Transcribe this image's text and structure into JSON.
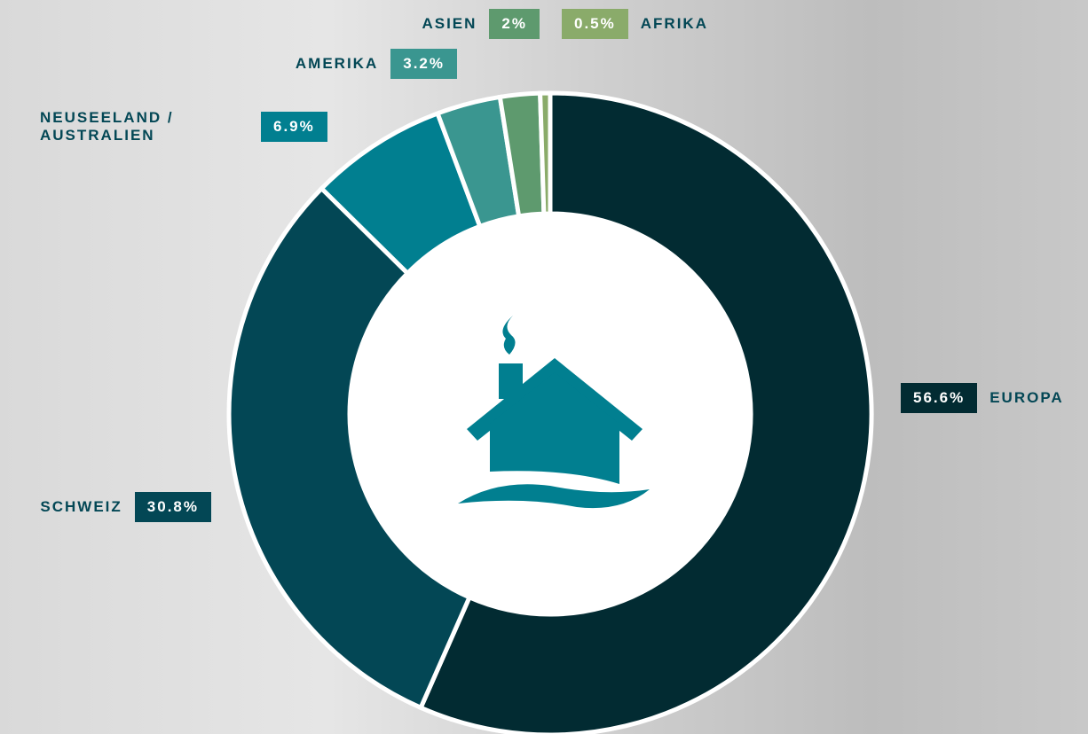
{
  "chart_data": {
    "type": "donut",
    "categories": [
      "EUROPA",
      "SCHWEIZ",
      "NEUSEELAND / AUSTRALIEN",
      "AMERIKA",
      "ASIEN",
      "AFRIKA"
    ],
    "values": [
      56.6,
      30.8,
      6.9,
      3.2,
      2,
      0.5
    ],
    "value_labels": [
      "56.6%",
      "30.8%",
      "6.9%",
      "3.2%",
      "2%",
      "0.5%"
    ],
    "colors": [
      "#022b32",
      "#034755",
      "#017f90",
      "#3a9690",
      "#5e9a6e",
      "#8aab6a"
    ]
  }
}
